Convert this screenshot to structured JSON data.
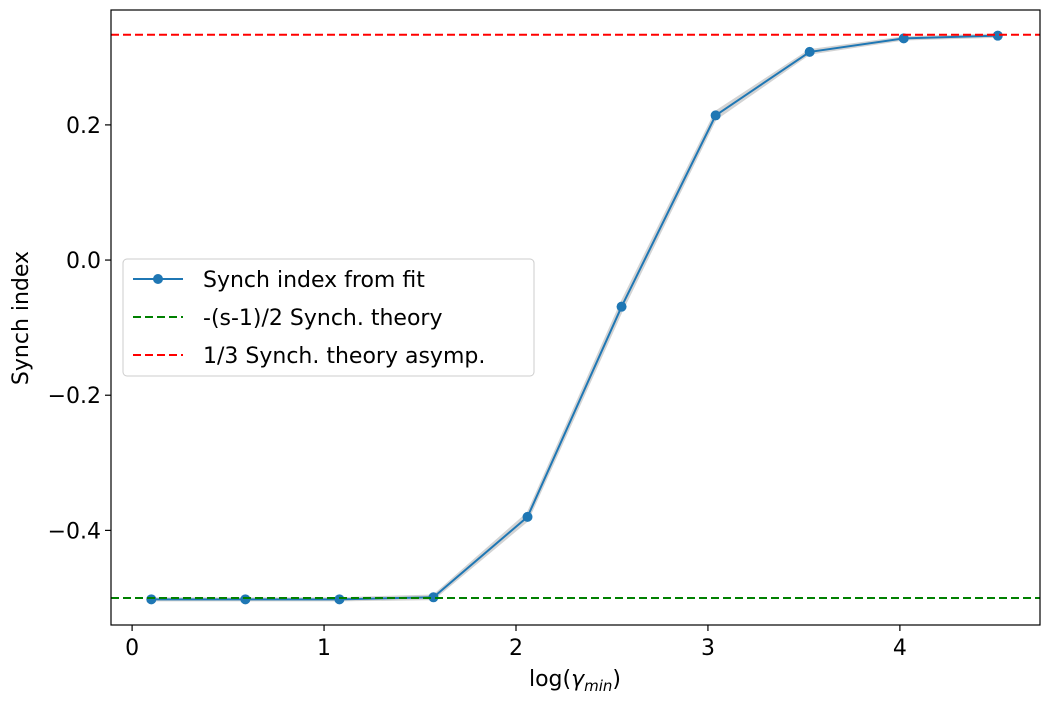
{
  "chart_data": {
    "type": "line",
    "xlabel": {
      "prefix": "log(",
      "symbol": "γ",
      "subscript": "min",
      "suffix": ")"
    },
    "ylabel": "Synch index",
    "xlim": [
      -0.11,
      4.73
    ],
    "ylim": [
      -0.54,
      0.37
    ],
    "x_ticks": [
      0,
      1,
      2,
      3,
      4
    ],
    "x_tick_labels": [
      "0",
      "1",
      "2",
      "3",
      "4"
    ],
    "y_ticks": [
      -0.4,
      -0.2,
      0.0,
      0.2
    ],
    "y_tick_labels": [
      "−0.4",
      "−0.2",
      "0.0",
      "0.2"
    ],
    "grid": false,
    "legend_position": "center-left",
    "series": [
      {
        "name": "Synch index from fit",
        "style": "line-marker",
        "color": "#1f77b4",
        "band_color": "#d3d3d3",
        "x": [
          0.1,
          0.59,
          1.08,
          1.57,
          2.06,
          2.55,
          3.04,
          3.53,
          4.02,
          4.51
        ],
        "y": [
          -0.502,
          -0.502,
          -0.502,
          -0.499,
          -0.38,
          -0.069,
          0.214,
          0.308,
          0.328,
          0.332
        ],
        "band_halfwidth": [
          0.002,
          0.002,
          0.002,
          0.003,
          0.006,
          0.008,
          0.006,
          0.003,
          0.002,
          0.002
        ]
      },
      {
        "name": "-(s-1)/2 Synch. theory",
        "style": "hline-dashed",
        "color": "#008000",
        "y": -0.5
      },
      {
        "name": "1/3 Synch. theory asymp.",
        "style": "hline-dashed",
        "color": "#ff0000",
        "y": 0.3333
      }
    ]
  }
}
